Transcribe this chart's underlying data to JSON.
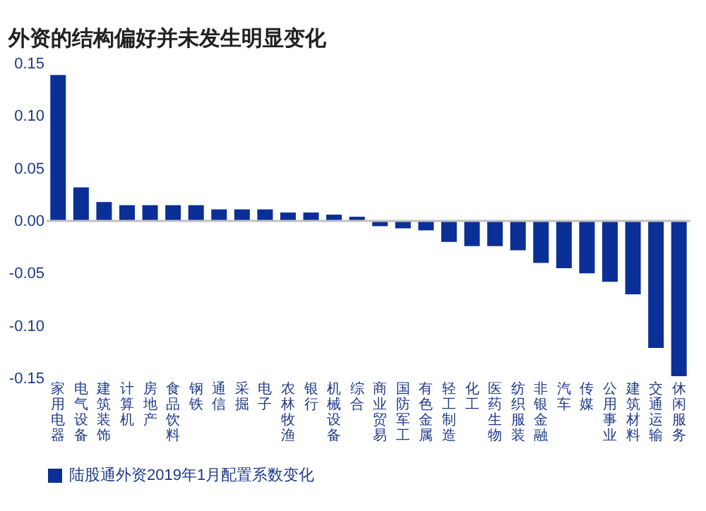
{
  "chart_data": {
    "type": "bar",
    "title": "外资的结构偏好并未发生明显变化",
    "categories": [
      "家用电器",
      "电气设备",
      "建筑装饰",
      "计算机",
      "房地产",
      "食品饮料",
      "钢铁",
      "通信",
      "采掘",
      "电子",
      "农林牧渔",
      "银行",
      "机械设备",
      "综合",
      "商业贸易",
      "国防军工",
      "有色金属",
      "轻工制造",
      "化工",
      "医药生物",
      "纺织服装",
      "非银金融",
      "汽车",
      "传媒",
      "公用事业",
      "建筑材料",
      "交通运输",
      "休闲服务"
    ],
    "series": [
      {
        "name": "陆股通外资2019年1月配置系数变化",
        "color": "#0a2f96",
        "values": [
          0.139,
          0.032,
          0.018,
          0.015,
          0.015,
          0.015,
          0.015,
          0.011,
          0.011,
          0.011,
          0.008,
          0.008,
          0.006,
          0.004,
          -0.005,
          -0.007,
          -0.009,
          -0.02,
          -0.024,
          -0.024,
          -0.028,
          -0.04,
          -0.045,
          -0.05,
          -0.058,
          -0.07,
          -0.121,
          -0.148
        ]
      }
    ],
    "ylim": [
      -0.15,
      0.15
    ],
    "yticks": [
      {
        "value": -0.15,
        "label": "-0.15"
      },
      {
        "value": -0.1,
        "label": "-0.10"
      },
      {
        "value": -0.05,
        "label": "-0.05"
      },
      {
        "value": 0,
        "label": "0.00"
      },
      {
        "value": 0.05,
        "label": "0.05"
      },
      {
        "value": 0.1,
        "label": "0.10"
      },
      {
        "value": 0.15,
        "label": "0.15"
      }
    ],
    "ref_lines": [
      {
        "axis": "y",
        "value": 0,
        "color": "#c0c0c0"
      }
    ],
    "grid": false,
    "legend": "bottom"
  }
}
